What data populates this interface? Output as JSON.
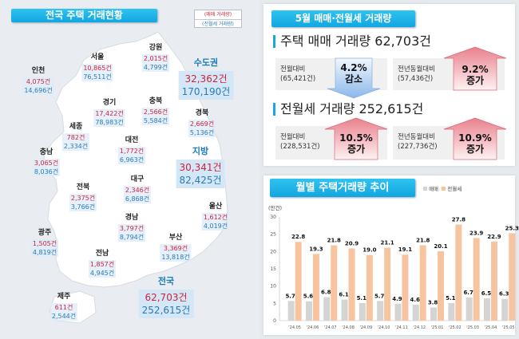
{
  "left": {
    "title": "전국 주택 거래현황",
    "legend": {
      "sale": "(매매 거래량)",
      "rent": "(전월세 거래량)"
    },
    "regions": {
      "gangwon": {
        "name": "강원",
        "sale": "2,015건",
        "rent": "4,799건"
      },
      "seoul": {
        "name": "서울",
        "sale": "10,865건",
        "rent": "76,511건"
      },
      "incheon": {
        "name": "인천",
        "sale": "4,075건",
        "rent": "14,696건"
      },
      "gyeonggi": {
        "name": "경기",
        "sale": "17,422건",
        "rent": "78,983건"
      },
      "chungbuk": {
        "name": "충북",
        "sale": "2,566건",
        "rent": "5,584건"
      },
      "gyeongbuk": {
        "name": "경북",
        "sale": "2,669건",
        "rent": "5,136건"
      },
      "sejong": {
        "name": "세종",
        "sale": "782건",
        "rent": "2,334건"
      },
      "daejeon": {
        "name": "대전",
        "sale": "1,772건",
        "rent": "6,963건"
      },
      "chungnam": {
        "name": "충남",
        "sale": "3,065건",
        "rent": "8,036건"
      },
      "daegu": {
        "name": "대구",
        "sale": "2,346건",
        "rent": "6,868건"
      },
      "jeonbuk": {
        "name": "전북",
        "sale": "2,375건",
        "rent": "3,766건"
      },
      "ulsan": {
        "name": "울산",
        "sale": "1,612건",
        "rent": "4,019건"
      },
      "gyeongnam": {
        "name": "경남",
        "sale": "3,797건",
        "rent": "8,794건"
      },
      "gwangju": {
        "name": "광주",
        "sale": "1,505건",
        "rent": "4,819건"
      },
      "busan": {
        "name": "부산",
        "sale": "3,369건",
        "rent": "13,818건"
      },
      "jeonnam": {
        "name": "전남",
        "sale": "1,857건",
        "rent": "4,945건"
      },
      "jeju": {
        "name": "제주",
        "sale": "611건",
        "rent": "2,544건"
      }
    },
    "totals": {
      "capital": {
        "name": "수도권",
        "sale": "32,362건",
        "rent": "170,190건"
      },
      "local": {
        "name": "지방",
        "sale": "30,341건",
        "rent": "82,425건"
      },
      "national": {
        "name": "전국",
        "sale": "62,703건",
        "rent": "252,615건"
      }
    }
  },
  "summary": {
    "title": "5월 매매·전월세 거래량",
    "sale": {
      "heading": "주택 매매 거래량 62,703건",
      "mom": {
        "label": "전월대비",
        "base": "(65,421건)",
        "pct": "4.2%",
        "dir": "감소"
      },
      "yoy": {
        "label": "전년동월대비",
        "base": "(57,436건)",
        "pct": "9.2%",
        "dir": "증가"
      }
    },
    "rent": {
      "heading": "전월세 거래량 252,615건",
      "mom": {
        "label": "전월대비",
        "base": "(228,531건)",
        "pct": "10.5%",
        "dir": "증가"
      },
      "yoy": {
        "label": "전년동월대비",
        "base": "(227,736건)",
        "pct": "10.9%",
        "dir": "증가"
      }
    },
    "colors": {
      "increase": "#e06070",
      "decrease": "#7ab0e6"
    }
  },
  "chart_data": {
    "type": "bar",
    "title": "월별 주택거래량 추이",
    "ylabel": "(만건)",
    "ylim": [
      0,
      30
    ],
    "yticks": [
      0,
      5,
      10,
      15,
      20,
      25,
      30
    ],
    "legend": "top-right",
    "grid": false,
    "categories": [
      "'24.05",
      "'24.06",
      "'24.07",
      "'24.08",
      "'24.09",
      "'24.10",
      "'24.11",
      "'24.12",
      "'25.01",
      "'25.02",
      "'25.03",
      "'25.04",
      "'25.05"
    ],
    "series": [
      {
        "name": "매매",
        "color": "#d4d4d4",
        "values": [
          5.7,
          5.6,
          6.8,
          6.1,
          5.1,
          5.7,
          4.9,
          4.6,
          3.8,
          5.1,
          6.7,
          6.5,
          6.3
        ]
      },
      {
        "name": "전월세",
        "color": "#f7c4a0",
        "values": [
          22.8,
          19.3,
          21.8,
          20.9,
          19.0,
          21.1,
          19.1,
          21.8,
          20.1,
          27.8,
          23.9,
          22.9,
          25.3
        ]
      }
    ]
  }
}
